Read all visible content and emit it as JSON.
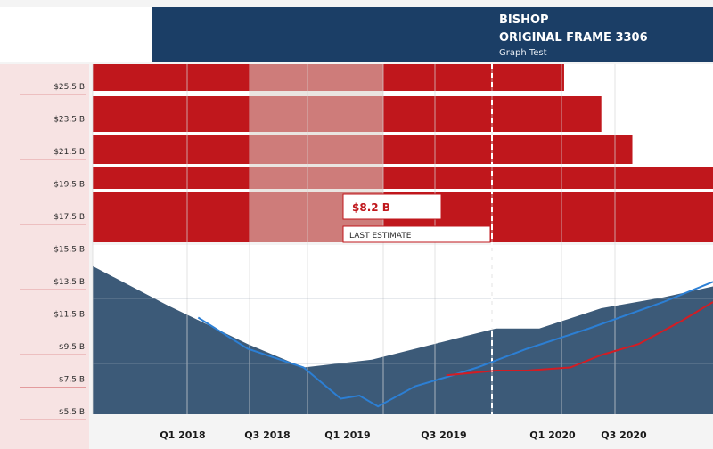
{
  "header": {
    "title": "BISHOP",
    "subtitle": "ORIGINAL FRAME 3306",
    "caption": "Graph Test"
  },
  "colors": {
    "navy": "#1b3e66",
    "red": "#c0171c",
    "slate": "#3c5a78",
    "blue_line": "#2c7fd4",
    "red_line": "#d21d24"
  },
  "chart_data": {
    "type": "area",
    "title": "",
    "xlabel": "",
    "ylabel": "",
    "yticks": [
      "$25.5 B",
      "$23.5 B",
      "$21.5 B",
      "$19.5 B",
      "$17.5 B",
      "$15.5 B",
      "$13.5 B",
      "$11.5 B",
      "$9.5 B",
      "$7.5 B",
      "$5.5 B"
    ],
    "xticks": [
      "Q1 2018",
      "Q3 2018",
      "Q1 2019",
      "Q3 2019",
      "Q1 2020",
      "Q3 2020"
    ],
    "bar_rows": [
      {
        "name": "row-1",
        "value": 0.76
      },
      {
        "name": "row-2",
        "value": 0.82
      },
      {
        "name": "row-3",
        "value": 0.87
      },
      {
        "name": "row-4",
        "value": 1.0
      },
      {
        "name": "row-5",
        "value": 1.0
      }
    ],
    "area": {
      "name": "",
      "x": [
        0,
        0.12,
        0.25,
        0.34,
        0.45,
        0.55,
        0.65,
        0.72,
        0.82,
        0.92,
        1.0
      ],
      "y": [
        0.95,
        0.7,
        0.45,
        0.3,
        0.35,
        0.45,
        0.55,
        0.55,
        0.68,
        0.75,
        0.82
      ]
    },
    "lines": [
      {
        "name": "",
        "color": "#2c7fd4",
        "x": [
          0.17,
          0.25,
          0.34,
          0.4,
          0.43,
          0.46,
          0.52,
          0.58,
          0.62,
          0.7,
          0.8,
          0.92,
          1.0
        ],
        "y": [
          0.62,
          0.42,
          0.3,
          0.1,
          0.12,
          0.05,
          0.18,
          0.25,
          0.3,
          0.42,
          0.55,
          0.72,
          0.85
        ]
      },
      {
        "name": "",
        "color": "#d21d24",
        "x": [
          0.57,
          0.65,
          0.7,
          0.77,
          0.82,
          0.88,
          0.95,
          1.0
        ],
        "y": [
          0.25,
          0.28,
          0.28,
          0.3,
          0.38,
          0.45,
          0.6,
          0.72
        ]
      }
    ],
    "annotation": "$8.2 B",
    "annotation_sub": "LAST ESTIMATE",
    "grid": true,
    "legend": "none"
  }
}
